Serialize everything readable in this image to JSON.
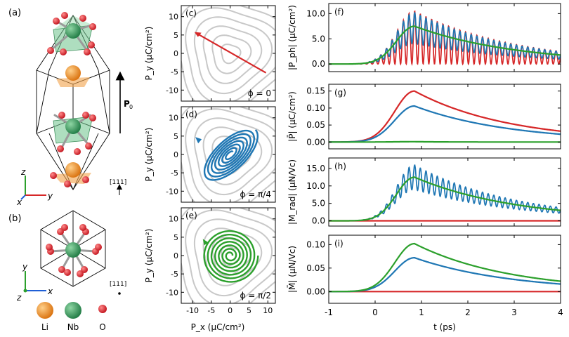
{
  "structure": {
    "label_a": "(a)",
    "label_b": "(b)",
    "pol_label": "P",
    "pol_sub": "0",
    "dir_111": "[111]",
    "dir_111b": "[111]",
    "axis_x": "x",
    "axis_y": "y",
    "axis_z": "z",
    "legend": [
      {
        "label": "Li",
        "color": "#f28e1c"
      },
      {
        "label": "Nb",
        "color": "#3a9a5c"
      },
      {
        "label": "O",
        "color": "#e0202a"
      }
    ]
  },
  "phase": {
    "xlabel": "P_x (μC/cm²)",
    "ylabel": "P_y (μC/cm²)",
    "xticks": [
      -10,
      -5,
      0,
      5,
      10
    ],
    "yticks": [
      10,
      5,
      0,
      -5,
      -10
    ],
    "xlim": [
      -13,
      12
    ],
    "ylim": [
      -13,
      13
    ],
    "panels": [
      {
        "label": "(c)",
        "phi": "ϕ = 0",
        "color": "#d62728",
        "kind": "linear"
      },
      {
        "label": "(d)",
        "phi": "ϕ = π/4",
        "color": "#1f77b4",
        "kind": "ellipse"
      },
      {
        "label": "(e)",
        "phi": "ϕ = π/2",
        "color": "#2ca02c",
        "kind": "spiral"
      }
    ]
  },
  "chart_data": [
    {
      "type": "line",
      "panel": "(f)",
      "ylabel": "|P_ph| (μC/cm²)",
      "xlim": [
        -1,
        4
      ],
      "ylim": [
        -1.5,
        12
      ],
      "yticks": [
        0.0,
        5.0,
        10.0
      ],
      "series": [
        {
          "name": "ϕ = 0",
          "color": "#d62728",
          "peak": 10.5,
          "oscillating": true
        },
        {
          "name": "ϕ = π/4",
          "color": "#1f77b4",
          "peak": 10.2,
          "oscillating": true
        },
        {
          "name": "ϕ = π/2",
          "color": "#2ca02c",
          "peak": 7.5,
          "oscillating": false
        }
      ]
    },
    {
      "type": "line",
      "panel": "(g)",
      "ylabel": "|P̄| (μC/cm²)",
      "xlim": [
        -1,
        4
      ],
      "ylim": [
        -0.02,
        0.17
      ],
      "yticks": [
        0.0,
        0.05,
        0.1,
        0.15
      ],
      "series": [
        {
          "name": "ϕ = 0",
          "color": "#d62728",
          "peak": 0.15,
          "end": 0.032
        },
        {
          "name": "ϕ = π/4",
          "color": "#1f77b4",
          "peak": 0.106,
          "end": 0.023
        },
        {
          "name": "ϕ = π/2",
          "color": "#2ca02c",
          "peak": 0.001,
          "end": 0.0
        }
      ]
    },
    {
      "type": "line",
      "panel": "(h)",
      "ylabel": "|M_rad| (μN/Vc)",
      "xlim": [
        -1,
        4
      ],
      "ylim": [
        -1.5,
        18
      ],
      "yticks": [
        0.0,
        5.0,
        10.0,
        15.0
      ],
      "series": [
        {
          "name": "ϕ = 0",
          "color": "#d62728",
          "peak": 0.0,
          "oscillating": false
        },
        {
          "name": "ϕ = π/4",
          "color": "#1f77b4",
          "peak": 16.0,
          "oscillating": true
        },
        {
          "name": "ϕ = π/2",
          "color": "#2ca02c",
          "peak": 12.5,
          "oscillating": false
        }
      ]
    },
    {
      "type": "line",
      "panel": "(i)",
      "ylabel": "|M̄| (μN/Vc)",
      "xlim": [
        -1,
        4
      ],
      "ylim": [
        -0.025,
        0.12
      ],
      "yticks": [
        0.0,
        0.05,
        0.1
      ],
      "series": [
        {
          "name": "ϕ = 0",
          "color": "#d62728",
          "peak": 0.0,
          "end": 0.0
        },
        {
          "name": "ϕ = π/4",
          "color": "#1f77b4",
          "peak": 0.072,
          "end": 0.016
        },
        {
          "name": "ϕ = π/2",
          "color": "#2ca02c",
          "peak": 0.102,
          "end": 0.022
        }
      ]
    }
  ],
  "time_axis": {
    "xlabel": "t (ps)",
    "xticks": [
      -1,
      0,
      1,
      2,
      3,
      4
    ]
  }
}
